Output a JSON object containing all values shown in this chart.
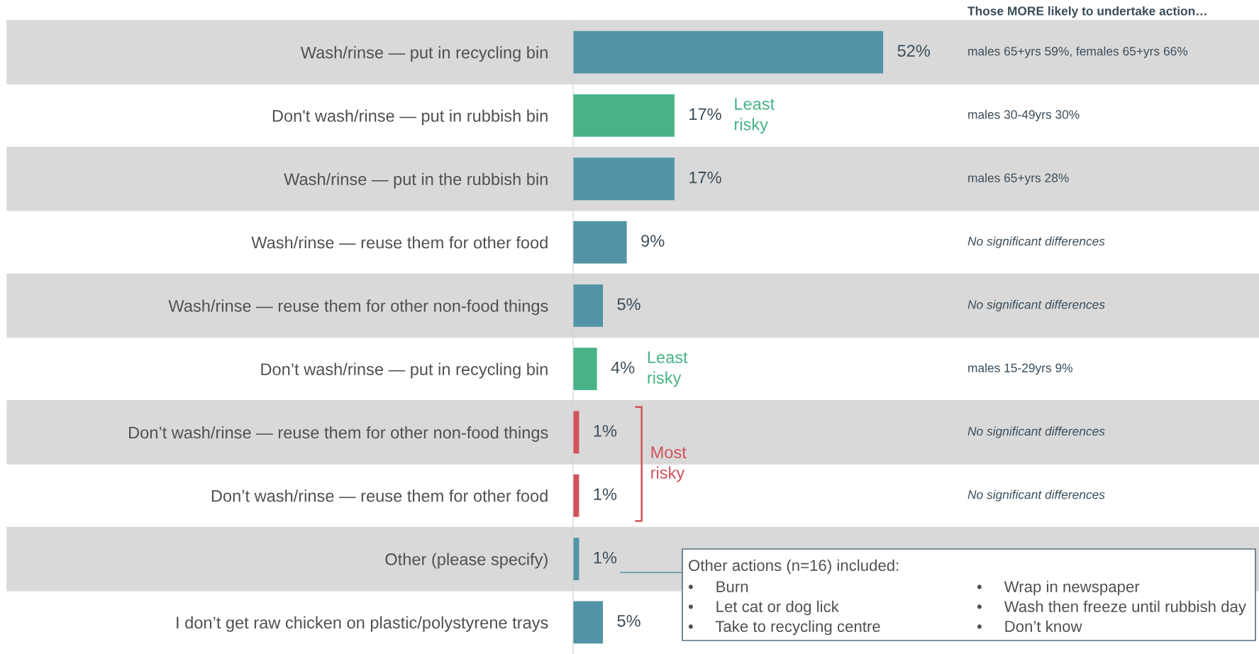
{
  "chart_data": {
    "type": "bar",
    "orientation": "horizontal",
    "categories": [
      "Wash/rinse — put in recycling bin",
      "Don't wash/rinse — put in rubbish bin",
      "Wash/rinse — put in the rubbish bin",
      "Wash/rinse — reuse them for other food",
      "Wash/rinse — reuse them for other non-food things",
      "Don’t wash/rinse — put in recycling bin",
      "Don’t wash/rinse — reuse them for other non-food things",
      "Don’t wash/rinse — reuse them for other food",
      "Other (please specify)",
      "I don’t get raw chicken on plastic/polystyrene trays"
    ],
    "values": [
      52,
      17,
      17,
      9,
      5,
      4,
      1,
      1,
      1,
      5
    ],
    "colors": [
      "#5294a6",
      "#47b386",
      "#5294a6",
      "#5294a6",
      "#5294a6",
      "#47b386",
      "#d0525a",
      "#d0525a",
      "#5294a6",
      "#5294a6"
    ],
    "value_labels": [
      "52%",
      "17%",
      "17%",
      "9%",
      "5%",
      "4%",
      "1%",
      "1%",
      "1%",
      "5%"
    ],
    "tick_labels": "y",
    "annotations": [
      "Those MORE likely to undertake action…",
      "males 65+yrs 59%, females 65+yrs 66%",
      "males 30-49yrs 30%",
      "males 65+yrs 28%",
      "No significant differences",
      "No significant differences",
      "males 15-29yrs 9%",
      "No significant differences",
      "No significant differences",
      "Least\nrisky",
      "Least\nrisky",
      "Most\nrisky",
      "Other actions (n=16) included:",
      "•     Burn",
      "•     Let cat or dog lick",
      "•     Take to recycling centre",
      "•     Wrap in newspaper",
      "•     Wash then freeze until rubbish day",
      "•     Don’t know"
    ]
  }
}
